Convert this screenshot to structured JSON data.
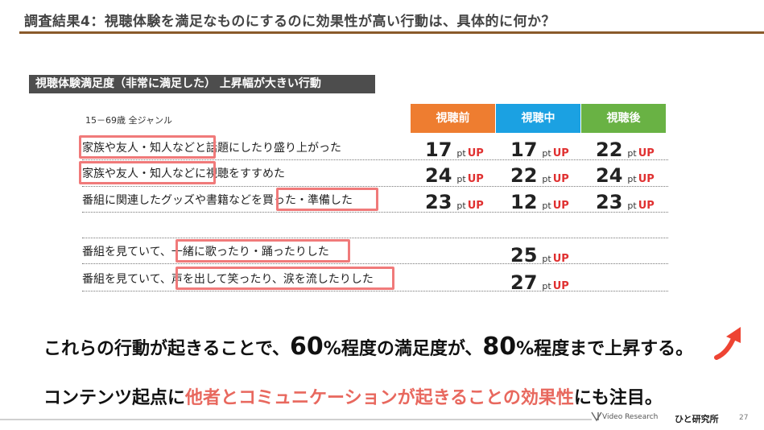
{
  "header": {
    "title": "調査結果4：視聴体験を満足なものにするのに効果性が高い行動は、具体的に何か？"
  },
  "section": {
    "label": "視聴体験満足度（非常に満足した） 上昇幅が大きい行動",
    "scope": "15－69歳 全ジャンル"
  },
  "columns": [
    {
      "label": "視聴前",
      "color": "#ee7d30"
    },
    {
      "label": "視聴中",
      "color": "#1ba1e2"
    },
    {
      "label": "視聴後",
      "color": "#69b244"
    }
  ],
  "unit": {
    "pt": "pt",
    "up": "UP"
  },
  "rows": [
    {
      "label": "家族や友人・知人などと話題にしたり盛り上がった",
      "values": [
        "17",
        "17",
        "22"
      ]
    },
    {
      "label": "家族や友人・知人などに視聴をすすめた",
      "values": [
        "24",
        "22",
        "24"
      ]
    },
    {
      "label": "番組に関連したグッズや書籍などを買った・準備した",
      "values": [
        "23",
        "12",
        "23"
      ]
    },
    {
      "label": "番組を見ていて、一緒に歌ったり・踊ったりした",
      "values": [
        "",
        "25",
        ""
      ]
    },
    {
      "label": "番組を見ていて、声を出して笑ったり、涙を流したりした",
      "values": [
        "",
        "27",
        ""
      ]
    }
  ],
  "conclusion": {
    "line1_a": "これらの行動が起きることで、",
    "line1_pct1": "60",
    "line1_b": "%程度の満足度が、",
    "line1_pct2": "80",
    "line1_c": "%程度まで上昇する。",
    "line2_a": "コンテンツ起点に",
    "line2_red": "他者とコミュニケーションが起きることの効果性",
    "line2_b": "にも注目。"
  },
  "footer": {
    "brand": "Video Research",
    "brand_jp": "ひと研究所",
    "page": "27"
  },
  "icons": {
    "trend": "up-arrow-icon",
    "logo": "video-research-logo-icon"
  }
}
